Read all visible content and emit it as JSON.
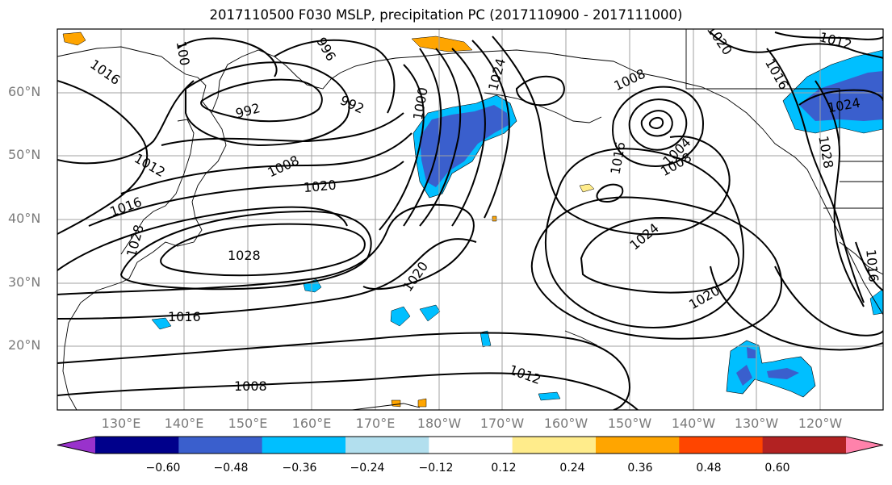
{
  "title": "2017110500 F030 MSLP, precipitation PC (2017110900 - 2017111000)",
  "lat_ticks": [
    "60°N",
    "50°N",
    "40°N",
    "30°N",
    "20°N"
  ],
  "lon_ticks": [
    "130°E",
    "140°E",
    "150°E",
    "160°E",
    "170°E",
    "180°W",
    "170°W",
    "160°W",
    "150°W",
    "140°W",
    "130°W",
    "120°W"
  ],
  "isobar_labels": [
    "1016",
    "100",
    "996",
    "992",
    "992",
    "1000",
    "1008",
    "1012",
    "1016",
    "1020",
    "1028",
    "1020",
    "1016",
    "1008",
    "1028",
    "1024",
    "1016",
    "1020",
    "1024",
    "1004",
    "1008",
    "1020",
    "1012",
    "1016",
    "1024",
    "1028",
    "1012",
    "1008",
    "1016"
  ],
  "colorbar": {
    "colors": [
      "#9932cc",
      "#00008b",
      "#3a5fcd",
      "#00bfff",
      "#b2dfee",
      "#ffffff",
      "#ffec8b",
      "#ffa500",
      "#ff4500",
      "#b22222",
      "#ff82ab"
    ],
    "labels": [
      "−0.60",
      "−0.48",
      "−0.36",
      "−0.24",
      "−0.12",
      "0.12",
      "0.24",
      "0.36",
      "0.48",
      "0.60"
    ]
  }
}
